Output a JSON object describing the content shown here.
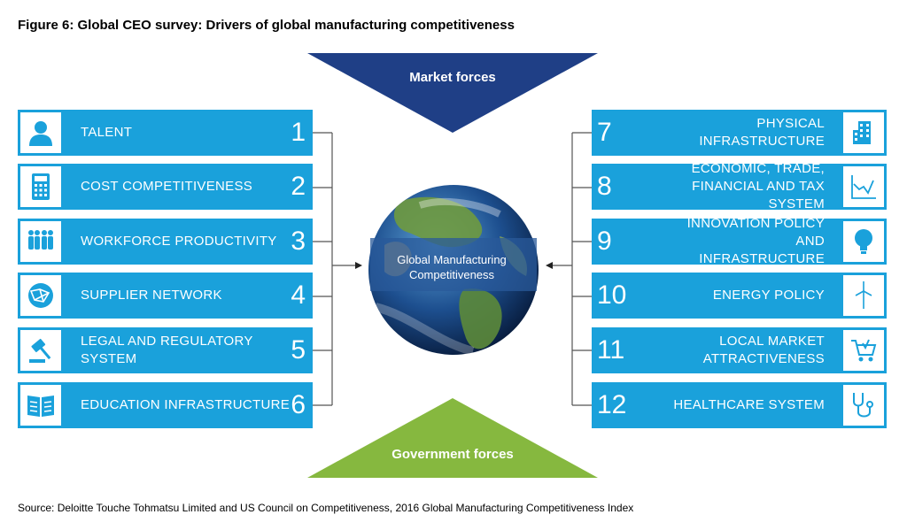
{
  "figure": {
    "title": "Figure 6: Global CEO survey: Drivers of global manufacturing competitiveness",
    "source": "Source: Deloitte Touche Tohmatsu Limited and US Council on Competitiveness, 2016 Global Manufacturing Competitiveness Index"
  },
  "market_forces": {
    "label": "Market forces",
    "color": "#1f3f86"
  },
  "government_forces": {
    "label": "Government forces",
    "color": "#86b83f"
  },
  "center": {
    "label": "Global Manufacturing Competitiveness"
  },
  "colors": {
    "card": "#1aa1db",
    "connector": "#555555"
  },
  "drivers_left": [
    {
      "number": "1",
      "label": "TALENT",
      "icon": "person-icon"
    },
    {
      "number": "2",
      "label": "COST COMPETITIVENESS",
      "icon": "calculator-icon"
    },
    {
      "number": "3",
      "label": "WORKFORCE PRODUCTIVITY",
      "icon": "people-icon"
    },
    {
      "number": "4",
      "label": "SUPPLIER NETWORK",
      "icon": "network-globe-icon"
    },
    {
      "number": "5",
      "label": "LEGAL AND REGULATORY SYSTEM",
      "icon": "gavel-icon"
    },
    {
      "number": "6",
      "label": "EDUCATION INFRASTRUCTURE",
      "icon": "book-icon"
    }
  ],
  "drivers_right": [
    {
      "number": "7",
      "label": "PHYSICAL INFRASTRUCTURE",
      "icon": "building-icon"
    },
    {
      "number": "8",
      "label": "ECONOMIC, TRADE, FINANCIAL AND TAX SYSTEM",
      "icon": "trend-chart-icon"
    },
    {
      "number": "9",
      "label": "INNOVATION POLICY AND INFRASTRUCTURE",
      "icon": "lightbulb-icon"
    },
    {
      "number": "10",
      "label": "ENERGY POLICY",
      "icon": "wind-turbine-icon"
    },
    {
      "number": "11",
      "label": "LOCAL MARKET ATTRACTIVENESS",
      "icon": "shopping-cart-icon"
    },
    {
      "number": "12",
      "label": "HEALTHCARE SYSTEM",
      "icon": "stethoscope-icon"
    }
  ]
}
